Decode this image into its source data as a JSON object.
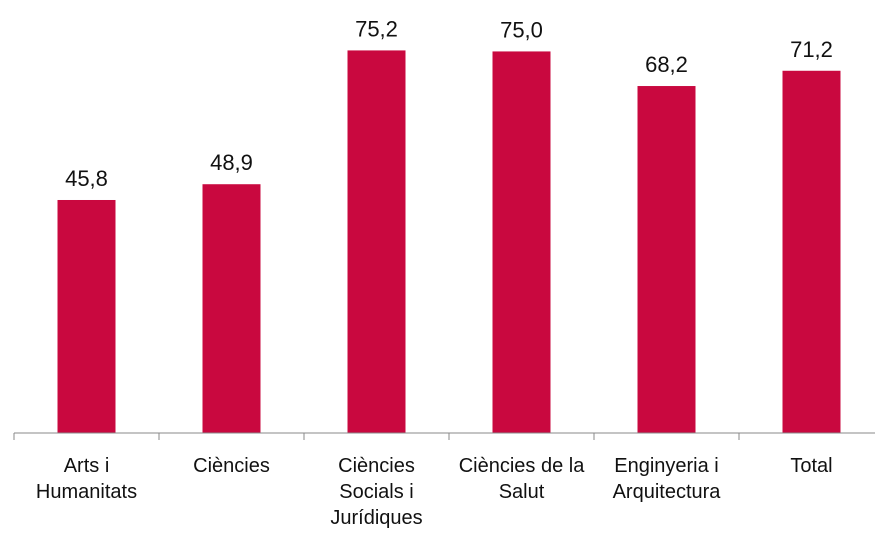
{
  "chart_data": {
    "type": "bar",
    "categories": [
      "Arts i Humanitats",
      "Ciències",
      "Ciències Socials i Jurídiques",
      "Ciències de la Salut",
      "Enginyeria i Arquitectura",
      "Total"
    ],
    "values": [
      45.8,
      48.9,
      75.2,
      75.0,
      68.2,
      71.2
    ],
    "value_labels": [
      "45,8",
      "48,9",
      "75,2",
      "75,0",
      "68,2",
      "71,2"
    ],
    "color": "#c9083f",
    "ylim": [
      0,
      80
    ]
  }
}
